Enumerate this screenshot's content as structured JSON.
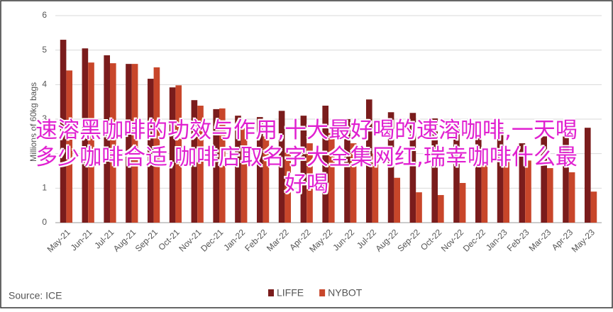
{
  "chart_data": {
    "type": "bar",
    "y_label": "Millions of 60kg bags",
    "source": "Source: ICE",
    "categories": [
      "May-21",
      "Jun-21",
      "Jul-21",
      "Aug-21",
      "Sep-21",
      "Oct-21",
      "Nov-21",
      "Dec-21",
      "Jan-22",
      "Feb-22",
      "Mar-22",
      "Apr-22",
      "May-22",
      "Jun-22",
      "Jul-22",
      "Aug-22",
      "Sep-22",
      "Oct-22",
      "Nov-22",
      "Dec-22",
      "Jan-23",
      "Feb-23",
      "Mar-23",
      "Apr-23",
      "May-23"
    ],
    "series": [
      {
        "name": "LIFFE",
        "color": "#7a1c1c",
        "values": [
          5.3,
          5.05,
          4.85,
          4.6,
          4.17,
          3.92,
          3.55,
          3.29,
          3.1,
          3.06,
          3.24,
          3.1,
          3.39,
          3.0,
          3.57,
          3.2,
          3.18,
          3.02,
          2.8,
          2.5,
          2.7,
          2.3,
          2.5,
          2.5,
          2.75
        ]
      },
      {
        "name": "NYBOT",
        "color": "#c8462a",
        "values": [
          4.41,
          4.64,
          4.62,
          4.6,
          4.5,
          3.98,
          3.39,
          3.31,
          2.8,
          2.5,
          2.2,
          2.3,
          2.6,
          2.3,
          2.0,
          1.3,
          0.88,
          0.8,
          1.15,
          1.7,
          1.8,
          1.8,
          1.58,
          1.46,
          0.9
        ]
      }
    ],
    "ylim": [
      0,
      6
    ],
    "yticks": [
      0,
      1,
      2,
      3,
      4,
      5,
      6
    ],
    "grid": true
  },
  "overlay_text": "速溶黑咖啡的功效与作用,十大最好喝的速溶咖啡,一天喝多少咖啡合适,咖啡店取名字大全集网红,瑞幸咖啡什么最好喝"
}
